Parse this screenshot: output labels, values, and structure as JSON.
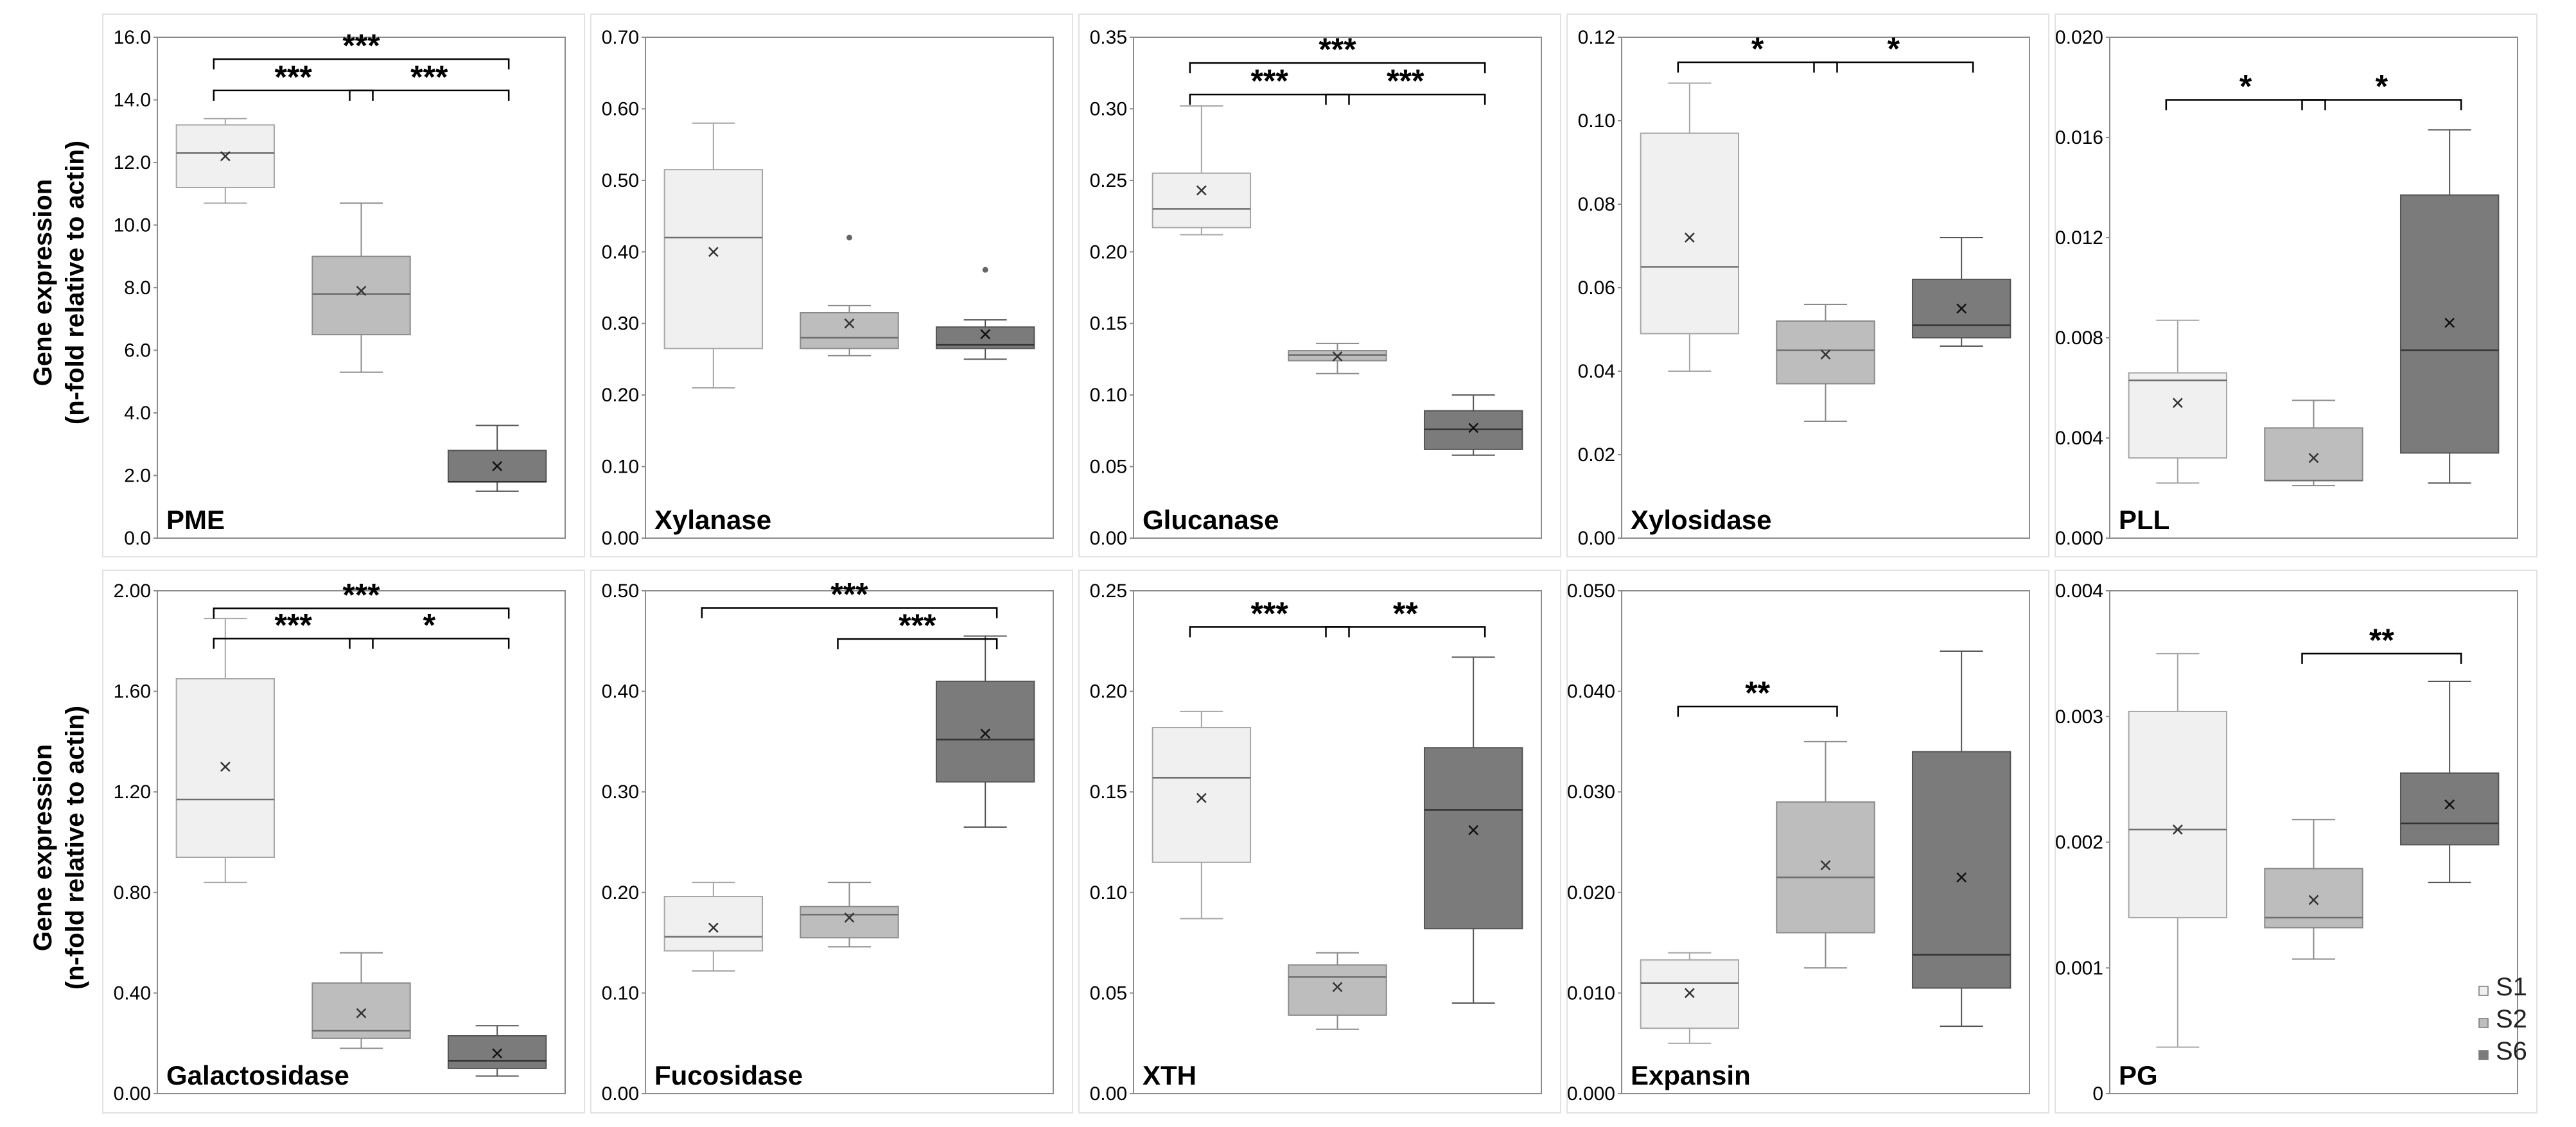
{
  "y_axis_label_line1": "Gene expression",
  "y_axis_label_line2": "(n-fold relative to actin)",
  "legend": {
    "items": [
      {
        "label": "S1",
        "color": "#f0f0f0"
      },
      {
        "label": "S2",
        "color": "#bdbdbd"
      },
      {
        "label": "S6",
        "color": "#7b7b7b"
      }
    ]
  },
  "chart_data": [
    {
      "type": "box",
      "gene": "PME",
      "ylim": [
        0,
        16.0
      ],
      "yticks": [
        "0.0",
        "2.0",
        "4.0",
        "6.0",
        "8.0",
        "10.0",
        "12.0",
        "14.0",
        "16.0"
      ],
      "groups": [
        {
          "name": "S1",
          "min": 10.7,
          "q1": 11.2,
          "median": 12.3,
          "q3": 13.2,
          "max": 13.4,
          "mean": 12.2,
          "outliers": []
        },
        {
          "name": "S2",
          "min": 5.3,
          "q1": 6.5,
          "median": 7.8,
          "q3": 9.0,
          "max": 10.7,
          "mean": 7.9,
          "outliers": []
        },
        {
          "name": "S6",
          "min": 1.5,
          "q1": 1.8,
          "median": 1.8,
          "q3": 2.8,
          "max": 3.6,
          "mean": 2.3,
          "outliers": []
        }
      ],
      "significance": [
        {
          "pair": [
            1,
            3
          ],
          "label": "***",
          "level": 15.3
        },
        {
          "pair": [
            1,
            2
          ],
          "label": "***",
          "level": 14.3
        },
        {
          "pair": [
            2,
            3
          ],
          "label": "***",
          "level": 14.3
        }
      ]
    },
    {
      "type": "box",
      "gene": "Xylanase",
      "ylim": [
        0,
        0.7
      ],
      "yticks": [
        "0.00",
        "0.10",
        "0.20",
        "0.30",
        "0.40",
        "0.50",
        "0.60",
        "0.70"
      ],
      "groups": [
        {
          "name": "S1",
          "min": 0.21,
          "q1": 0.265,
          "median": 0.42,
          "q3": 0.515,
          "max": 0.58,
          "mean": 0.4,
          "outliers": []
        },
        {
          "name": "S2",
          "min": 0.255,
          "q1": 0.265,
          "median": 0.28,
          "q3": 0.315,
          "max": 0.325,
          "mean": 0.3,
          "outliers": [
            0.42
          ]
        },
        {
          "name": "S6",
          "min": 0.25,
          "q1": 0.265,
          "median": 0.27,
          "q3": 0.295,
          "max": 0.305,
          "mean": 0.285,
          "outliers": [
            0.375
          ]
        }
      ],
      "significance": []
    },
    {
      "type": "box",
      "gene": "Glucanase",
      "ylim": [
        0,
        0.35
      ],
      "yticks": [
        "0.00",
        "0.05",
        "0.10",
        "0.15",
        "0.20",
        "0.25",
        "0.30",
        "0.35"
      ],
      "groups": [
        {
          "name": "S1",
          "min": 0.212,
          "q1": 0.217,
          "median": 0.23,
          "q3": 0.255,
          "max": 0.302,
          "mean": 0.243,
          "outliers": []
        },
        {
          "name": "S2",
          "min": 0.115,
          "q1": 0.124,
          "median": 0.128,
          "q3": 0.131,
          "max": 0.136,
          "mean": 0.127,
          "outliers": []
        },
        {
          "name": "S6",
          "min": 0.058,
          "q1": 0.062,
          "median": 0.076,
          "q3": 0.089,
          "max": 0.1,
          "mean": 0.077,
          "outliers": []
        }
      ],
      "significance": [
        {
          "pair": [
            1,
            3
          ],
          "label": "***",
          "level": 0.332
        },
        {
          "pair": [
            1,
            2
          ],
          "label": "***",
          "level": 0.31
        },
        {
          "pair": [
            2,
            3
          ],
          "label": "***",
          "level": 0.31
        }
      ]
    },
    {
      "type": "box",
      "gene": "Xylosidase",
      "ylim": [
        0,
        0.12
      ],
      "yticks": [
        "0.00",
        "0.02",
        "0.04",
        "0.06",
        "0.08",
        "0.10",
        "0.12"
      ],
      "groups": [
        {
          "name": "S1",
          "min": 0.04,
          "q1": 0.049,
          "median": 0.065,
          "q3": 0.097,
          "max": 0.109,
          "mean": 0.072,
          "outliers": []
        },
        {
          "name": "S2",
          "min": 0.028,
          "q1": 0.037,
          "median": 0.045,
          "q3": 0.052,
          "max": 0.056,
          "mean": 0.044,
          "outliers": []
        },
        {
          "name": "S6",
          "min": 0.046,
          "q1": 0.048,
          "median": 0.051,
          "q3": 0.062,
          "max": 0.072,
          "mean": 0.055,
          "outliers": []
        }
      ],
      "significance": [
        {
          "pair": [
            1,
            2
          ],
          "label": "*",
          "level": 0.114
        },
        {
          "pair": [
            2,
            3
          ],
          "label": "*",
          "level": 0.114
        }
      ]
    },
    {
      "type": "box",
      "gene": "PLL",
      "ylim": [
        0,
        0.02
      ],
      "yticks": [
        "0.000",
        "0.004",
        "0.008",
        "0.012",
        "0.016",
        "0.020"
      ],
      "groups": [
        {
          "name": "S1",
          "min": 0.0022,
          "q1": 0.0032,
          "median": 0.0063,
          "q3": 0.0066,
          "max": 0.0087,
          "mean": 0.0054,
          "outliers": []
        },
        {
          "name": "S2",
          "min": 0.0021,
          "q1": 0.0023,
          "median": 0.0023,
          "q3": 0.0044,
          "max": 0.0055,
          "mean": 0.0032,
          "outliers": []
        },
        {
          "name": "S6",
          "min": 0.0022,
          "q1": 0.0034,
          "median": 0.0075,
          "q3": 0.0137,
          "max": 0.0163,
          "mean": 0.0086,
          "outliers": []
        }
      ],
      "significance": [
        {
          "pair": [
            1,
            2
          ],
          "label": "*",
          "level": 0.0175
        },
        {
          "pair": [
            2,
            3
          ],
          "label": "*",
          "level": 0.0175
        }
      ]
    },
    {
      "type": "box",
      "gene": "Galactosidase",
      "ylim": [
        0,
        2.0
      ],
      "yticks": [
        "0.00",
        "0.40",
        "0.80",
        "1.20",
        "1.60",
        "2.00"
      ],
      "groups": [
        {
          "name": "S1",
          "min": 0.84,
          "q1": 0.94,
          "median": 1.17,
          "q3": 1.65,
          "max": 1.89,
          "mean": 1.3,
          "outliers": []
        },
        {
          "name": "S2",
          "min": 0.18,
          "q1": 0.22,
          "median": 0.25,
          "q3": 0.44,
          "max": 0.56,
          "mean": 0.32,
          "outliers": []
        },
        {
          "name": "S6",
          "min": 0.07,
          "q1": 0.1,
          "median": 0.13,
          "q3": 0.23,
          "max": 0.27,
          "mean": 0.16,
          "outliers": []
        }
      ],
      "significance": [
        {
          "pair": [
            1,
            3
          ],
          "label": "***",
          "level": 1.93
        },
        {
          "pair": [
            1,
            2
          ],
          "label": "***",
          "level": 1.81
        },
        {
          "pair": [
            2,
            3
          ],
          "label": "*",
          "level": 1.81
        }
      ]
    },
    {
      "type": "box",
      "gene": "Fucosidase",
      "ylim": [
        0,
        0.5
      ],
      "yticks": [
        "0.00",
        "0.10",
        "0.20",
        "0.30",
        "0.40",
        "0.50"
      ],
      "groups": [
        {
          "name": "S1",
          "min": 0.122,
          "q1": 0.142,
          "median": 0.156,
          "q3": 0.196,
          "max": 0.21,
          "mean": 0.165,
          "outliers": []
        },
        {
          "name": "S2",
          "min": 0.146,
          "q1": 0.155,
          "median": 0.178,
          "q3": 0.186,
          "max": 0.21,
          "mean": 0.175,
          "outliers": []
        },
        {
          "name": "S6",
          "min": 0.265,
          "q1": 0.31,
          "median": 0.352,
          "q3": 0.41,
          "max": 0.455,
          "mean": 0.358,
          "outliers": []
        }
      ],
      "significance": [
        {
          "pair": [
            1,
            3
          ],
          "label": "***",
          "level": 0.483
        },
        {
          "pair": [
            2,
            3
          ],
          "label": "***",
          "level": 0.452
        }
      ]
    },
    {
      "type": "box",
      "gene": "XTH",
      "ylim": [
        0,
        0.25
      ],
      "yticks": [
        "0.00",
        "0.05",
        "0.10",
        "0.15",
        "0.20",
        "0.25"
      ],
      "groups": [
        {
          "name": "S1",
          "min": 0.087,
          "q1": 0.115,
          "median": 0.157,
          "q3": 0.182,
          "max": 0.19,
          "mean": 0.147,
          "outliers": []
        },
        {
          "name": "S2",
          "min": 0.032,
          "q1": 0.039,
          "median": 0.058,
          "q3": 0.064,
          "max": 0.07,
          "mean": 0.053,
          "outliers": []
        },
        {
          "name": "S6",
          "min": 0.045,
          "q1": 0.082,
          "median": 0.141,
          "q3": 0.172,
          "max": 0.217,
          "mean": 0.131,
          "outliers": []
        }
      ],
      "significance": [
        {
          "pair": [
            1,
            2
          ],
          "label": "***",
          "level": 0.232
        },
        {
          "pair": [
            2,
            3
          ],
          "label": "**",
          "level": 0.232
        }
      ]
    },
    {
      "type": "box",
      "gene": "Expansin",
      "ylim": [
        0,
        0.05
      ],
      "yticks": [
        "0.000",
        "0.010",
        "0.020",
        "0.030",
        "0.040",
        "0.050"
      ],
      "groups": [
        {
          "name": "S1",
          "min": 0.005,
          "q1": 0.0065,
          "median": 0.011,
          "q3": 0.0133,
          "max": 0.014,
          "mean": 0.01,
          "outliers": []
        },
        {
          "name": "S2",
          "min": 0.0125,
          "q1": 0.016,
          "median": 0.0215,
          "q3": 0.029,
          "max": 0.035,
          "mean": 0.0227,
          "outliers": []
        },
        {
          "name": "S6",
          "min": 0.0067,
          "q1": 0.0105,
          "median": 0.0138,
          "q3": 0.034,
          "max": 0.044,
          "mean": 0.0215,
          "outliers": []
        }
      ],
      "significance": [
        {
          "pair": [
            1,
            2
          ],
          "label": "**",
          "level": 0.0385
        }
      ]
    },
    {
      "type": "box",
      "gene": "PG",
      "ylim": [
        0,
        0.004
      ],
      "yticks": [
        "0",
        "0.001",
        "0.002",
        "0.003",
        "0.004"
      ],
      "groups": [
        {
          "name": "S1",
          "min": 0.00037,
          "q1": 0.0014,
          "median": 0.0021,
          "q3": 0.00304,
          "max": 0.0035,
          "mean": 0.0021,
          "outliers": []
        },
        {
          "name": "S2",
          "min": 0.00107,
          "q1": 0.00132,
          "median": 0.0014,
          "q3": 0.00179,
          "max": 0.00218,
          "mean": 0.00154,
          "outliers": []
        },
        {
          "name": "S6",
          "min": 0.00168,
          "q1": 0.00198,
          "median": 0.00215,
          "q3": 0.00255,
          "max": 0.00328,
          "mean": 0.0023,
          "outliers": []
        }
      ],
      "significance": [
        {
          "pair": [
            2,
            3
          ],
          "label": "**",
          "level": 0.0035
        }
      ]
    }
  ]
}
